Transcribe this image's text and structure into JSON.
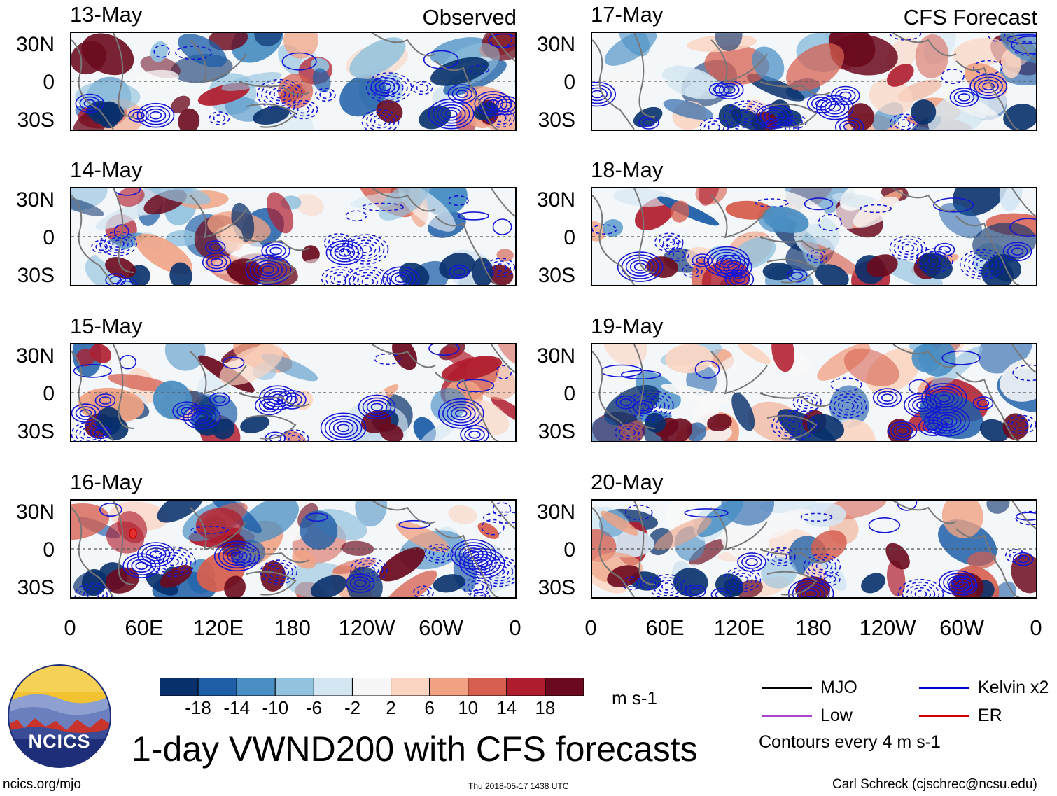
{
  "panels": [
    {
      "date": "13-May",
      "tag": "Observed"
    },
    {
      "date": "14-May",
      "tag": ""
    },
    {
      "date": "15-May",
      "tag": ""
    },
    {
      "date": "16-May",
      "tag": ""
    },
    {
      "date": "17-May",
      "tag": "CFS Forecast"
    },
    {
      "date": "18-May",
      "tag": ""
    },
    {
      "date": "19-May",
      "tag": ""
    },
    {
      "date": "20-May",
      "tag": ""
    }
  ],
  "lat_labels": [
    "30N",
    "0",
    "30S"
  ],
  "lon_labels": [
    "0",
    "60E",
    "120E",
    "180",
    "120W",
    "60W",
    "0"
  ],
  "colorbar": {
    "colors": [
      "#08306b",
      "#1f5fa8",
      "#4a8fc4",
      "#93c2de",
      "#d4e6f2",
      "#f7f7f7",
      "#fbd5c2",
      "#f0a283",
      "#d65f4f",
      "#b01d2e",
      "#6b0a1e"
    ],
    "labels": [
      "-18",
      "-14",
      "-10",
      "-6",
      "-2",
      "2",
      "6",
      "10",
      "14",
      "18"
    ],
    "units": "m s-1"
  },
  "legend": {
    "items": [
      {
        "label": "MJO",
        "color": "#000000"
      },
      {
        "label": "Kelvin x2",
        "color": "#0000cc"
      },
      {
        "label": "Low",
        "color": "#aa44cc"
      },
      {
        "label": "ER",
        "color": "#cc0000"
      }
    ],
    "note": "Contours every 4 m s-1"
  },
  "title": "1-day VWND200 with CFS forecasts",
  "logo_text": "NCICS",
  "footer": {
    "url": "ncics.org/mjo",
    "timestamp": "Thu 2018-05-17 1438 UTC",
    "credit": "Carl Schreck (cjschrec@ncsu.edu)"
  }
}
